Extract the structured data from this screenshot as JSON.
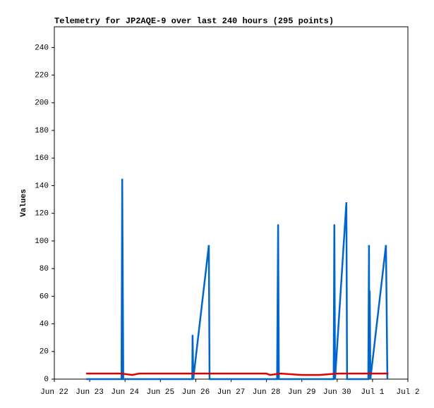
{
  "chart_data": {
    "type": "line",
    "title": "Telemetry for JP2AQE-9 over last 240 hours (295 points)",
    "y_label": "Values",
    "xlim": [
      0,
      10
    ],
    "xticks": [
      {
        "value": 0,
        "label": "Jun 22"
      },
      {
        "value": 1,
        "label": "Jun 23"
      },
      {
        "value": 2,
        "label": "Jun 24"
      },
      {
        "value": 3,
        "label": "Jun 25"
      },
      {
        "value": 4,
        "label": "Jun 26"
      },
      {
        "value": 5,
        "label": "Jun 27"
      },
      {
        "value": 6,
        "label": "Jun 28"
      },
      {
        "value": 7,
        "label": "Jun 29"
      },
      {
        "value": 8,
        "label": "Jun 30"
      },
      {
        "value": 9,
        "label": "Jul 1"
      },
      {
        "value": 10,
        "label": "Jul 2"
      }
    ],
    "ylim": [
      0,
      255
    ],
    "yticks": [
      0,
      20,
      40,
      60,
      80,
      100,
      120,
      140,
      160,
      180,
      200,
      220,
      240
    ],
    "series": [
      {
        "color": "#0066cc",
        "x": [
          0.9,
          1.9,
          1.92,
          1.95,
          3.9,
          3.91,
          3.93,
          4.37,
          4.39,
          6.3,
          6.33,
          6.35,
          7.9,
          7.92,
          7.94,
          8.26,
          8.28,
          8.88,
          8.9,
          8.91,
          8.92,
          8.94,
          9.38,
          9.4,
          9.42
        ],
        "values": [
          0,
          0,
          145,
          0,
          0,
          32,
          0,
          97,
          0,
          0,
          112,
          0,
          0,
          112,
          0,
          128,
          0,
          0,
          97,
          0,
          64,
          0,
          97,
          48,
          0
        ]
      },
      {
        "color": "#e00000",
        "x": [
          0.9,
          1.5,
          1.9,
          2.2,
          2.4,
          3.0,
          4.0,
          5.0,
          6.0,
          6.1,
          6.4,
          7.0,
          7.5,
          8.0,
          8.5,
          9.0,
          9.45
        ],
        "values": [
          4,
          4,
          4,
          3,
          4,
          4,
          4,
          4,
          4,
          3,
          4,
          3,
          3,
          4,
          4,
          4,
          4
        ]
      }
    ]
  }
}
